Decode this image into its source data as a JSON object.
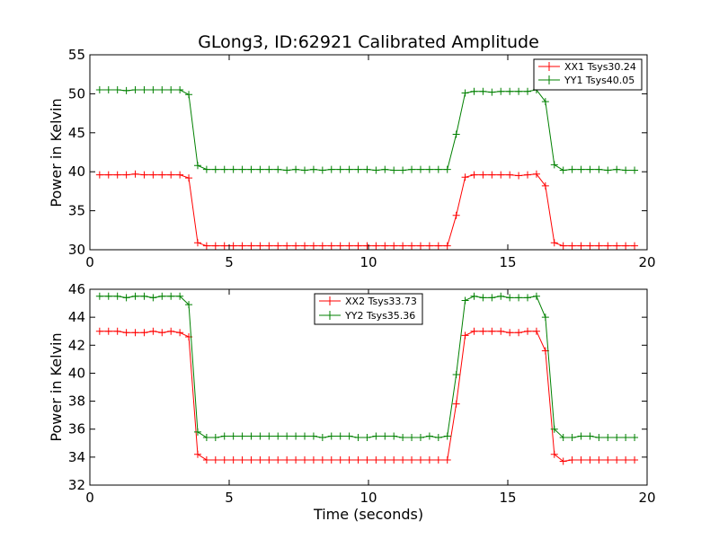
{
  "chart_data": [
    {
      "type": "line",
      "title": "GLong3, ID:62921 Calibrated Amplitude",
      "xlabel": "",
      "ylabel": "Power in Kelvin",
      "xlim": [
        0,
        20
      ],
      "ylim": [
        30,
        55
      ],
      "xticks": [
        "0",
        "5",
        "10",
        "15",
        "20"
      ],
      "yticks": [
        "30",
        "35",
        "40",
        "45",
        "50",
        "55"
      ],
      "grid": false,
      "legend_position": "top-right",
      "x": [
        0.35,
        0.67,
        0.99,
        1.31,
        1.63,
        1.95,
        2.27,
        2.59,
        2.91,
        3.23,
        3.55,
        3.87,
        4.19,
        4.51,
        4.83,
        5.15,
        5.47,
        5.79,
        6.11,
        6.43,
        6.75,
        7.07,
        7.39,
        7.71,
        8.03,
        8.35,
        8.67,
        8.99,
        9.31,
        9.63,
        9.95,
        10.27,
        10.59,
        10.91,
        11.23,
        11.55,
        11.87,
        12.19,
        12.51,
        12.83,
        13.15,
        13.47,
        13.79,
        14.11,
        14.43,
        14.75,
        15.07,
        15.39,
        15.71,
        16.03,
        16.35,
        16.67,
        16.99,
        17.31,
        17.63,
        17.95,
        18.27,
        18.59,
        18.91,
        19.23,
        19.55
      ],
      "series": [
        {
          "name": "XX1 Tsys30.24",
          "color": "#ff0000",
          "values": [
            39.6,
            39.6,
            39.6,
            39.6,
            39.7,
            39.6,
            39.6,
            39.6,
            39.6,
            39.6,
            39.2,
            30.9,
            30.5,
            30.5,
            30.5,
            30.5,
            30.5,
            30.5,
            30.5,
            30.5,
            30.5,
            30.5,
            30.5,
            30.5,
            30.5,
            30.5,
            30.5,
            30.5,
            30.5,
            30.5,
            30.5,
            30.5,
            30.5,
            30.5,
            30.5,
            30.5,
            30.5,
            30.5,
            30.5,
            30.5,
            34.4,
            39.3,
            39.6,
            39.6,
            39.6,
            39.6,
            39.6,
            39.5,
            39.6,
            39.7,
            38.2,
            30.9,
            30.5,
            30.5,
            30.5,
            30.5,
            30.5,
            30.5,
            30.5,
            30.5,
            30.5
          ]
        },
        {
          "name": "YY1 Tsys40.05",
          "color": "#008000",
          "values": [
            50.5,
            50.5,
            50.5,
            50.4,
            50.5,
            50.5,
            50.5,
            50.5,
            50.5,
            50.5,
            49.9,
            40.8,
            40.3,
            40.3,
            40.3,
            40.3,
            40.3,
            40.3,
            40.3,
            40.3,
            40.3,
            40.2,
            40.3,
            40.2,
            40.3,
            40.2,
            40.3,
            40.3,
            40.3,
            40.3,
            40.3,
            40.2,
            40.3,
            40.2,
            40.2,
            40.3,
            40.3,
            40.3,
            40.3,
            40.3,
            44.8,
            50.1,
            50.3,
            50.3,
            50.2,
            50.3,
            50.3,
            50.3,
            50.3,
            50.5,
            49.0,
            40.9,
            40.2,
            40.3,
            40.3,
            40.3,
            40.3,
            40.2,
            40.3,
            40.2,
            40.2
          ]
        }
      ]
    },
    {
      "type": "line",
      "title": "",
      "xlabel": "Time (seconds)",
      "ylabel": "Power in Kelvin",
      "xlim": [
        0,
        20
      ],
      "ylim": [
        32,
        46
      ],
      "xticks": [
        "0",
        "5",
        "10",
        "15",
        "20"
      ],
      "yticks": [
        "32",
        "34",
        "36",
        "38",
        "40",
        "42",
        "44",
        "46"
      ],
      "grid": false,
      "legend_position": "top-center",
      "x": [
        0.35,
        0.67,
        0.99,
        1.31,
        1.63,
        1.95,
        2.27,
        2.59,
        2.91,
        3.23,
        3.55,
        3.87,
        4.19,
        4.51,
        4.83,
        5.15,
        5.47,
        5.79,
        6.11,
        6.43,
        6.75,
        7.07,
        7.39,
        7.71,
        8.03,
        8.35,
        8.67,
        8.99,
        9.31,
        9.63,
        9.95,
        10.27,
        10.59,
        10.91,
        11.23,
        11.55,
        11.87,
        12.19,
        12.51,
        12.83,
        13.15,
        13.47,
        13.79,
        14.11,
        14.43,
        14.75,
        15.07,
        15.39,
        15.71,
        16.03,
        16.35,
        16.67,
        16.99,
        17.31,
        17.63,
        17.95,
        18.27,
        18.59,
        18.91,
        19.23,
        19.55
      ],
      "series": [
        {
          "name": "XX2 Tsys33.73",
          "color": "#ff0000",
          "values": [
            43.0,
            43.0,
            43.0,
            42.9,
            42.9,
            42.9,
            43.0,
            42.9,
            43.0,
            42.9,
            42.6,
            34.2,
            33.8,
            33.8,
            33.8,
            33.8,
            33.8,
            33.8,
            33.8,
            33.8,
            33.8,
            33.8,
            33.8,
            33.8,
            33.8,
            33.8,
            33.8,
            33.8,
            33.8,
            33.8,
            33.8,
            33.8,
            33.8,
            33.8,
            33.8,
            33.8,
            33.8,
            33.8,
            33.8,
            33.8,
            37.8,
            42.7,
            43.0,
            43.0,
            43.0,
            43.0,
            42.9,
            42.9,
            43.0,
            43.0,
            41.6,
            34.2,
            33.7,
            33.8,
            33.8,
            33.8,
            33.8,
            33.8,
            33.8,
            33.8,
            33.8
          ]
        },
        {
          "name": "YY2 Tsys35.36",
          "color": "#008000",
          "values": [
            45.5,
            45.5,
            45.5,
            45.4,
            45.5,
            45.5,
            45.4,
            45.5,
            45.5,
            45.5,
            44.9,
            35.8,
            35.4,
            35.4,
            35.5,
            35.5,
            35.5,
            35.5,
            35.5,
            35.5,
            35.5,
            35.5,
            35.5,
            35.5,
            35.5,
            35.4,
            35.5,
            35.5,
            35.5,
            35.4,
            35.4,
            35.5,
            35.5,
            35.5,
            35.4,
            35.4,
            35.4,
            35.5,
            35.4,
            35.5,
            39.9,
            45.2,
            45.5,
            45.4,
            45.4,
            45.5,
            45.4,
            45.4,
            45.4,
            45.5,
            44.0,
            36.0,
            35.4,
            35.4,
            35.5,
            35.5,
            35.4,
            35.4,
            35.4,
            35.4,
            35.4
          ]
        }
      ]
    }
  ]
}
